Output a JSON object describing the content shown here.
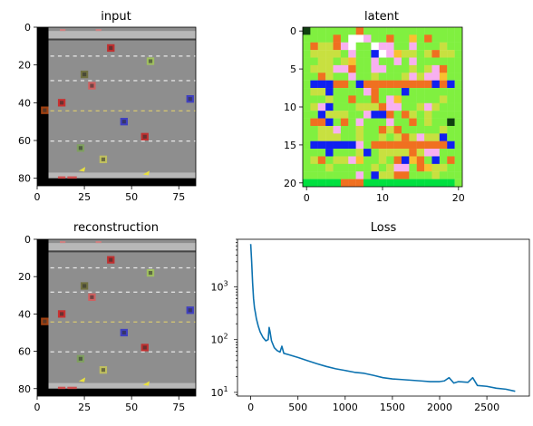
{
  "chart_data": [
    {
      "type": "image",
      "title": "input",
      "x_ticks": [
        "0",
        "25",
        "50",
        "75"
      ],
      "y_ticks": [
        "0",
        "20",
        "40",
        "60",
        "80"
      ],
      "xlim": [
        0,
        84
      ],
      "ylim": [
        84,
        0
      ],
      "scene": {
        "background": "#8e8e8e",
        "lane_marking_rows": [
          15,
          28,
          44,
          60
        ],
        "median_row": 44,
        "cars": [
          {
            "x": 13,
            "y": 40,
            "color": "#c83030"
          },
          {
            "x": 4,
            "y": 44,
            "color": "#a04010"
          },
          {
            "x": 25,
            "y": 25,
            "color": "#707040"
          },
          {
            "x": 39,
            "y": 11,
            "color": "#c03030"
          },
          {
            "x": 29,
            "y": 31,
            "color": "#d06060"
          },
          {
            "x": 60,
            "y": 18,
            "color": "#a0c060"
          },
          {
            "x": 46,
            "y": 50,
            "color": "#4040c0"
          },
          {
            "x": 57,
            "y": 58,
            "color": "#c03030"
          },
          {
            "x": 81,
            "y": 38,
            "color": "#4040c0"
          },
          {
            "x": 23,
            "y": 64,
            "color": "#80a060"
          },
          {
            "x": 35,
            "y": 70,
            "color": "#c0c060"
          }
        ],
        "chickens": [
          {
            "x": 24,
            "y": 74
          },
          {
            "x": 58,
            "y": 76
          }
        ]
      }
    },
    {
      "type": "heatmap",
      "title": "latent",
      "x_ticks": [
        "0",
        "10",
        "20"
      ],
      "y_ticks": [
        "0",
        "5",
        "10",
        "15",
        "20"
      ],
      "xlim": [
        0,
        20
      ],
      "ylim": [
        20,
        0
      ],
      "palette": [
        "#00e040",
        "#80f040",
        "#c8e040",
        "#f8c030",
        "#f07020",
        "#1020f0",
        "#f8b0f0",
        "#104010",
        "#ffffff"
      ],
      "grid": [
        "71111114111111111111",
        "11114188611411314111",
        "14224681186611611121",
        "12222161158632212422",
        "11221231161161611111",
        "12226641166111212641",
        "11421161121112626631",
        "15554415444444444545",
        "12251111641115111111",
        "11121141141631111121",
        "12651112224661126211",
        "11522211655414212111",
        "14451416111611412117",
        "11226112114241111121",
        "11222112112124262251",
        "15555556144444444445",
        "11151112512222426611",
        "12412263112145341514",
        "11121111121266143221",
        "11111116152244111211",
        "00000444000000000000"
      ]
    },
    {
      "type": "image",
      "title": "reconstruction",
      "x_ticks": [
        "0",
        "25",
        "50",
        "75"
      ],
      "y_ticks": [
        "0",
        "20",
        "40",
        "60",
        "80"
      ],
      "xlim": [
        0,
        84
      ],
      "ylim": [
        84,
        0
      ]
    },
    {
      "type": "line",
      "title": "Loss",
      "x_ticks": [
        "0",
        "500",
        "1000",
        "1500",
        "2000",
        "2500"
      ],
      "y_ticks": [
        "10^1",
        "10^2",
        "10^3"
      ],
      "xlim": [
        -140,
        2950
      ],
      "ylim": [
        8.5,
        8000
      ],
      "yscale": "log",
      "line_color": "#0c72b0",
      "series": [
        {
          "x": [
            0,
            10,
            20,
            30,
            40,
            50,
            60,
            80,
            100,
            130,
            160,
            185,
            195,
            205,
            220,
            250,
            280,
            310,
            330,
            350,
            400,
            500,
            600,
            700,
            800,
            900,
            1000,
            1100,
            1200,
            1300,
            1400,
            1500,
            1600,
            1700,
            1800,
            1900,
            2000,
            2050,
            2100,
            2150,
            2200,
            2300,
            2350,
            2400,
            2500,
            2600,
            2700,
            2800
          ],
          "y": [
            6500,
            3000,
            1200,
            600,
            400,
            320,
            250,
            180,
            140,
            110,
            95,
            100,
            170,
            140,
            95,
            70,
            62,
            58,
            75,
            55,
            52,
            46,
            40,
            35,
            31,
            28,
            26,
            24,
            23,
            21,
            19,
            18,
            17.5,
            17,
            16.5,
            16,
            16,
            16.5,
            19,
            15,
            16,
            15.5,
            19,
            13.5,
            13,
            12,
            11.5,
            10.5
          ]
        }
      ]
    }
  ]
}
